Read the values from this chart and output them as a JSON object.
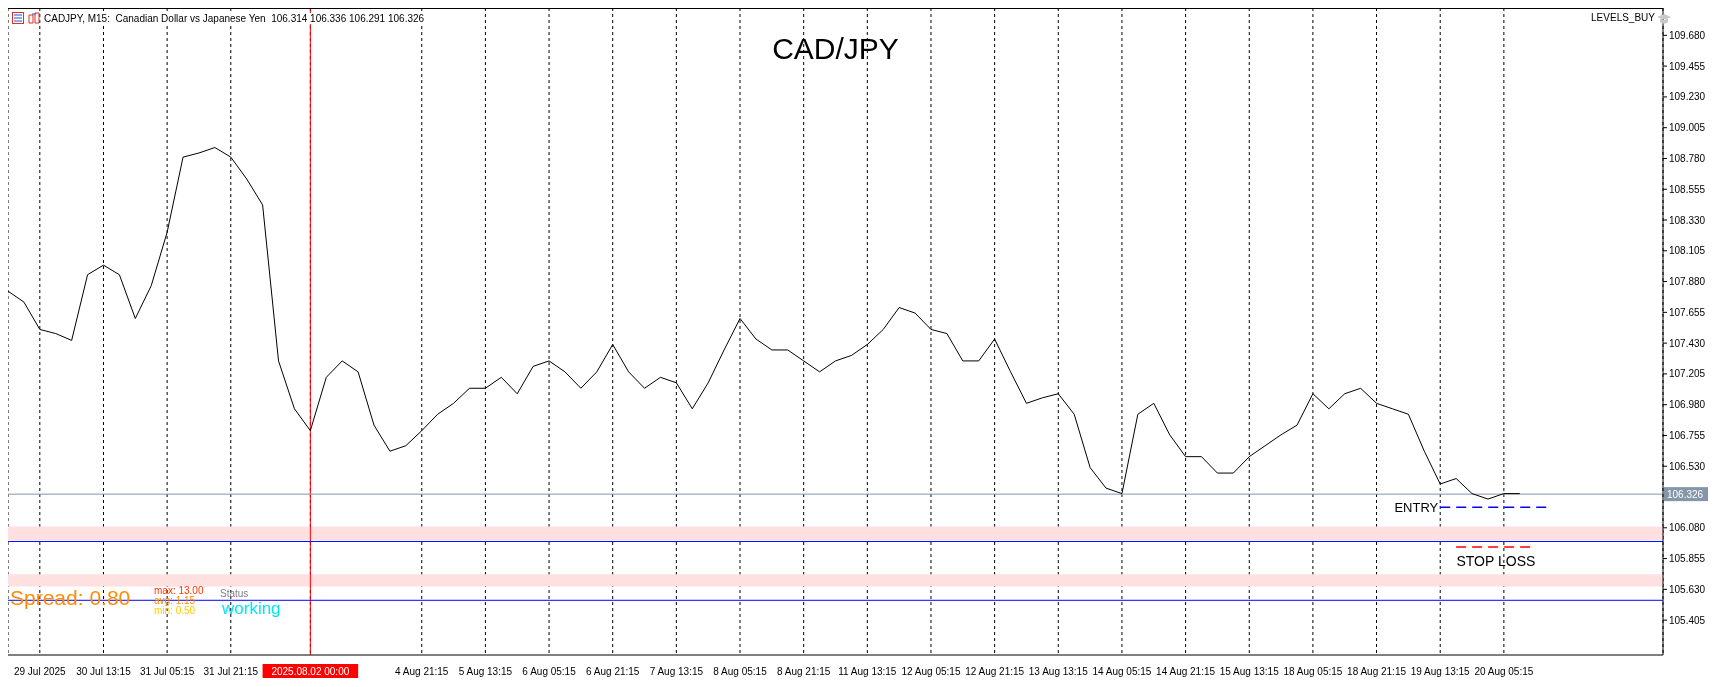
{
  "chart_data": {
    "type": "line",
    "title": "CAD/JPY",
    "subtitle": "CADJPY, M15:  Canadian Dollar vs Japanese Yen  106.314 106.336 106.291 106.326",
    "annotations": [
      "LEVELS_BUY",
      "Spread: 0.80",
      "max: 13.00",
      "avg: 1.15",
      "min: 0.50",
      "Status",
      "working"
    ],
    "categories": [
      null,
      null,
      "29 Jul 2025",
      null,
      null,
      null,
      "30 Jul 13:15",
      null,
      null,
      null,
      "31 Jul 05:15",
      null,
      null,
      null,
      "31 Jul 21:15",
      null,
      null,
      null,
      null,
      "2025.08.02 00:00",
      null,
      null,
      null,
      null,
      null,
      null,
      "4 Aug 21:15",
      null,
      null,
      null,
      "5 Aug 13:15",
      null,
      null,
      null,
      "6 Aug 05:15",
      null,
      null,
      null,
      "6 Aug 21:15",
      null,
      null,
      null,
      "7 Aug 13:15",
      null,
      null,
      null,
      "8 Aug 05:15",
      null,
      null,
      null,
      "8 Aug 21:15",
      null,
      null,
      null,
      "11 Aug 13:15",
      null,
      null,
      null,
      "12 Aug 05:15",
      null,
      null,
      null,
      "12 Aug 21:15",
      null,
      null,
      null,
      "13 Aug 13:15",
      null,
      null,
      null,
      "14 Aug 05:15",
      null,
      null,
      null,
      "14 Aug 21:15",
      null,
      null,
      null,
      "15 Aug 13:15",
      null,
      null,
      null,
      "18 Aug 05:15",
      null,
      null,
      null,
      "18 Aug 21:15",
      null,
      null,
      null,
      "19 Aug 13:15",
      null,
      null,
      null,
      "20 Aug 05:15",
      null,
      null,
      null,
      null,
      null,
      null,
      null,
      null,
      null,
      null
    ],
    "series": [
      {
        "color": "#000000",
        "values": [
          107.81,
          107.73,
          107.53,
          107.5,
          107.45,
          107.93,
          108.0,
          107.93,
          107.61,
          107.85,
          108.24,
          108.79,
          108.82,
          108.86,
          108.79,
          108.63,
          108.44,
          107.3,
          106.95,
          106.79,
          107.18,
          107.3,
          107.22,
          106.83,
          106.64,
          106.68,
          106.79,
          106.91,
          106.99,
          107.1,
          107.1,
          107.18,
          107.06,
          107.26,
          107.3,
          107.22,
          107.1,
          107.22,
          107.42,
          107.22,
          107.1,
          107.18,
          107.14,
          106.95,
          107.14,
          107.38,
          107.61,
          107.46,
          107.38,
          107.38,
          107.3,
          107.22,
          107.3,
          107.34,
          107.42,
          107.53,
          107.69,
          107.65,
          107.53,
          107.5,
          107.3,
          107.3,
          107.46,
          107.22,
          106.99,
          107.03,
          107.06,
          106.91,
          106.52,
          106.37,
          106.33,
          106.91,
          106.99,
          106.76,
          106.6,
          106.6,
          106.48,
          106.48,
          106.6,
          106.68,
          106.76,
          106.83,
          107.06,
          106.95,
          107.06,
          107.1,
          106.99,
          106.95,
          106.91,
          106.64,
          106.4,
          106.44,
          106.33,
          106.29,
          106.33,
          106.33,
          null,
          null,
          null,
          null,
          null,
          null,
          null,
          null,
          null
        ]
      }
    ],
    "ylim": [
      105.15,
      109.88
    ],
    "yticks": [
      {
        "value": 105.405,
        "label": "105.405"
      },
      {
        "value": 105.63,
        "label": "105.630"
      },
      {
        "value": 105.855,
        "label": "105.855"
      },
      {
        "value": 106.08,
        "label": "106.080"
      },
      {
        "value": 106.53,
        "label": "106.530"
      },
      {
        "value": 106.755,
        "label": "106.755"
      },
      {
        "value": 106.98,
        "label": "106.980"
      },
      {
        "value": 107.205,
        "label": "107.205"
      },
      {
        "value": 107.43,
        "label": "107.430"
      },
      {
        "value": 107.655,
        "label": "107.655"
      },
      {
        "value": 107.88,
        "label": "107.880"
      },
      {
        "value": 108.105,
        "label": "108.105"
      },
      {
        "value": 108.33,
        "label": "108.330"
      },
      {
        "value": 108.555,
        "label": "108.555"
      },
      {
        "value": 108.78,
        "label": "108.780"
      },
      {
        "value": 109.005,
        "label": "109.005"
      },
      {
        "value": 109.23,
        "label": "109.230"
      },
      {
        "value": 109.455,
        "label": "109.455"
      },
      {
        "value": 109.68,
        "label": "109.680"
      }
    ],
    "ref_lines": [
      {
        "axis": "y",
        "value": 106.326,
        "label": "106.326",
        "color": "#8496a8"
      },
      {
        "axis": "y",
        "value": 106.23,
        "label": "ENTRY",
        "color": "#0000ff",
        "line_style": "dashed"
      },
      {
        "axis": "y",
        "value": 105.94,
        "label": "STOP LOSS",
        "color": "#ff0000",
        "line_style": "dashed"
      },
      {
        "axis": "y",
        "value": 105.98,
        "color": "#0000ff"
      },
      {
        "axis": "y",
        "value": 105.55,
        "color": "#0000ff"
      },
      {
        "axis": "x",
        "value": "2025.08.02 00:00",
        "color": "#ff0000"
      }
    ],
    "bands": [
      {
        "axis": "y",
        "from": 105.99,
        "to": 106.09,
        "color": "#ffe0e0"
      },
      {
        "axis": "y",
        "from": 105.65,
        "to": 105.74,
        "color": "#ffe0e0"
      }
    ],
    "grid": "x",
    "legend": false,
    "marker": "none",
    "line_style": "solid"
  }
}
